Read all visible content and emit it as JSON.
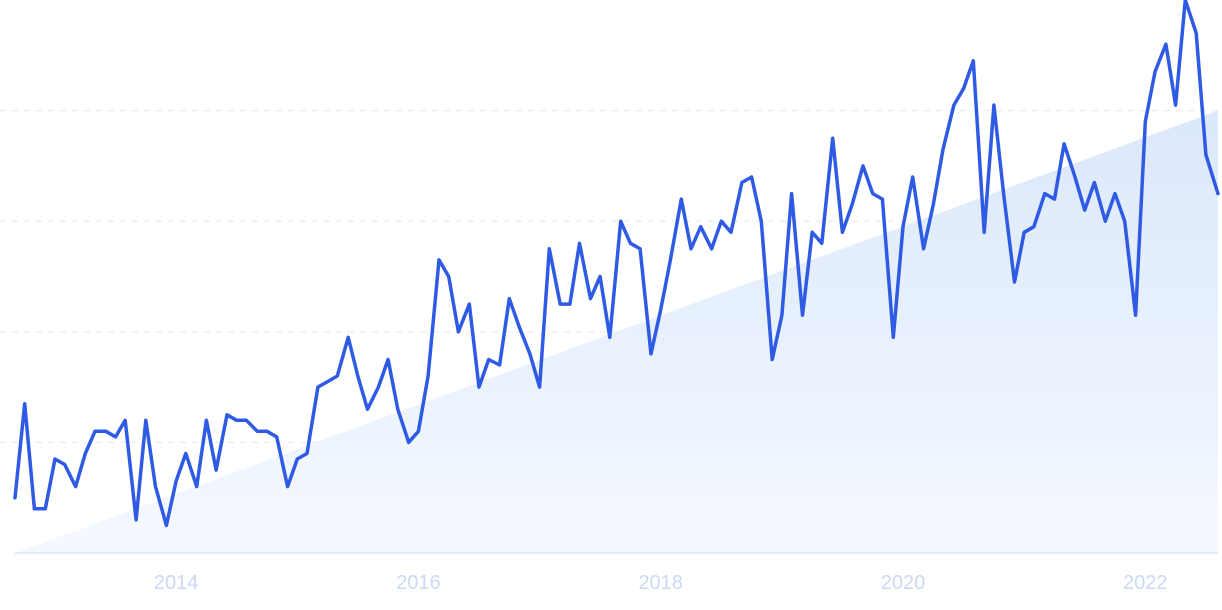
{
  "colors": {
    "line": "#2f5be4",
    "trend_fill_top": "#dbe8fb",
    "trend_fill_bottom": "#f5f9ff",
    "grid": "#e3e8f0",
    "tick_text": "#c9daf3"
  },
  "chart_data": {
    "type": "line",
    "title": "",
    "xlabel": "",
    "ylabel": "",
    "x_ticks": [
      "2014",
      "2016",
      "2018",
      "2020",
      "2022"
    ],
    "x_tick_values": [
      2014,
      2016,
      2018,
      2020,
      2022
    ],
    "xlim": [
      2012.67,
      2022.6
    ],
    "ylim": [
      0,
      100
    ],
    "grid": "horizontal dashed",
    "legend": "none",
    "trend_fill": {
      "x": [
        2012.67,
        2022.6
      ],
      "y": [
        0,
        80
      ]
    },
    "series": [
      {
        "x": [
          2012.67,
          2012.75,
          2012.83,
          2012.92,
          2013.0,
          2013.08,
          2013.17,
          2013.25,
          2013.33,
          2013.42,
          2013.5,
          2013.58,
          2013.67,
          2013.75,
          2013.83,
          2013.92,
          2014.0,
          2014.08,
          2014.17,
          2014.25,
          2014.33,
          2014.42,
          2014.5,
          2014.58,
          2014.67,
          2014.75,
          2014.83,
          2014.92,
          2015.0,
          2015.08,
          2015.17,
          2015.25,
          2015.33,
          2015.42,
          2015.5,
          2015.58,
          2015.67,
          2015.75,
          2015.83,
          2015.92,
          2016.0,
          2016.08,
          2016.17,
          2016.25,
          2016.33,
          2016.42,
          2016.5,
          2016.58,
          2016.67,
          2016.75,
          2016.83,
          2016.92,
          2017.0,
          2017.08,
          2017.17,
          2017.25,
          2017.33,
          2017.42,
          2017.5,
          2017.58,
          2017.67,
          2017.75,
          2017.83,
          2017.92,
          2018.0,
          2018.08,
          2018.17,
          2018.25,
          2018.33,
          2018.42,
          2018.5,
          2018.58,
          2018.67,
          2018.75,
          2018.83,
          2018.92,
          2019.0,
          2019.08,
          2019.17,
          2019.25,
          2019.33,
          2019.42,
          2019.5,
          2019.58,
          2019.67,
          2019.75,
          2019.83,
          2019.92,
          2020.0,
          2020.08,
          2020.17,
          2020.25,
          2020.33,
          2020.42,
          2020.5,
          2020.58,
          2020.67,
          2020.75,
          2020.83,
          2020.92,
          2021.0,
          2021.08,
          2021.17,
          2021.25,
          2021.33,
          2021.42,
          2021.5,
          2021.58,
          2021.67,
          2021.75,
          2021.83,
          2021.92,
          2022.0,
          2022.08,
          2022.17,
          2022.25,
          2022.33,
          2022.42,
          2022.5,
          2022.6
        ],
        "values": [
          10,
          27,
          8,
          8,
          17,
          16,
          12,
          18,
          22,
          22,
          21,
          24,
          6,
          24,
          12,
          5,
          13,
          18,
          12,
          24,
          15,
          25,
          24,
          24,
          22,
          22,
          21,
          12,
          17,
          18,
          30,
          31,
          32,
          39,
          32,
          26,
          30,
          35,
          26,
          20,
          22,
          32,
          53,
          50,
          40,
          45,
          30,
          35,
          34,
          46,
          41,
          36,
          30,
          55,
          45,
          45,
          56,
          46,
          50,
          39,
          60,
          56,
          55,
          36,
          44,
          53,
          64,
          55,
          59,
          55,
          60,
          58,
          67,
          68,
          60,
          35,
          43,
          65,
          43,
          58,
          56,
          75,
          58,
          63,
          70,
          65,
          64,
          39,
          59,
          68,
          55,
          63,
          73,
          81,
          84,
          89,
          58,
          81,
          65,
          49,
          58,
          59,
          65,
          64,
          74,
          68,
          62,
          67,
          60,
          65,
          60,
          43,
          78,
          87,
          92,
          81,
          100,
          94,
          72,
          65
        ]
      }
    ]
  }
}
